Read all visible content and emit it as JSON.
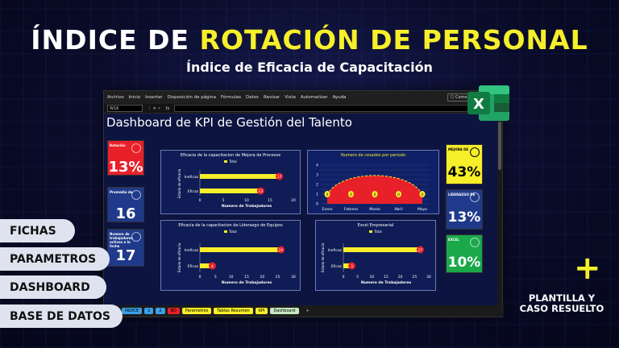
{
  "header": {
    "title_part1": "ÍNDICE DE ",
    "title_part2": "ROTACIÓN DE PERSONAL",
    "subtitle": "Índice de Eficacia de Capacitación"
  },
  "ribbon": {
    "items": [
      "Archivo",
      "Inicio",
      "Insertar",
      "Disposición de página",
      "Fórmulas",
      "Datos",
      "Revisar",
      "Vista",
      "Automatizar",
      "Ayuda"
    ],
    "comments": "Comentarios"
  },
  "formula_bar": {
    "cell": "W16",
    "fx": "fx"
  },
  "dashboard": {
    "title": "Dashboard de KPI de Gestión del Talento",
    "kpis_left": [
      {
        "label": "Rotación",
        "value": "13%",
        "color": "#e8202a"
      },
      {
        "label": "Promedio de",
        "value": "16",
        "color": "#1f3a8a"
      },
      {
        "label": "Numero de trabajadores activos a la fecha",
        "value": "17",
        "color": "#1f3a8a"
      }
    ],
    "kpis_right": [
      {
        "label": "MEJORA DE",
        "value": "43%",
        "color": "#f6ef2a",
        "text": "#000"
      },
      {
        "label": "LIDERAZGO DE",
        "value": "13%",
        "color": "#1f3a8a",
        "text": "#fff"
      },
      {
        "label": "EXCEL",
        "value": "10%",
        "color": "#1aa84a",
        "text": "#fff"
      }
    ]
  },
  "charts_text": {
    "c1_title": "Eficacia de la capacitacion de Mejora de Procesos",
    "c2_title": "Numero de cesados por periodo",
    "c3_title": "Eficacia de la capacitacion de Liderazgo de Equipos",
    "c4_title": "Excel Empresarial",
    "legend": "Total",
    "ylab": "Estado de eficacia",
    "xlab": "Numero de Trabajadores"
  },
  "chart_data": [
    {
      "type": "bar",
      "orientation": "horizontal",
      "title": "Eficacia de la capacitacion de Mejora de Procesos",
      "categories": [
        "Ineficaz",
        "Eficaz"
      ],
      "values": [
        17,
        13
      ],
      "xlim": [
        0,
        20
      ],
      "xticks": [
        0,
        5,
        10,
        15,
        20
      ],
      "xlabel": "Numero de Trabajadores",
      "ylabel": "Estado de eficacia",
      "legend": "Total"
    },
    {
      "type": "area",
      "title": "Numero de cesados por periodo",
      "categories": [
        "Enero",
        "Febrero",
        "Marzo",
        "Abril",
        "Mayo"
      ],
      "values": [
        0,
        0,
        0,
        0,
        0
      ],
      "ylim": [
        0,
        4
      ],
      "yticks": [
        0,
        0.5,
        1,
        1.5,
        2,
        2.5,
        3,
        3.5,
        4
      ]
    },
    {
      "type": "bar",
      "orientation": "horizontal",
      "title": "Eficacia de la capacitacion de Liderazgo de Equipos",
      "categories": [
        "Ineficaz",
        "Eficaz"
      ],
      "values": [
        26,
        4
      ],
      "xlim": [
        0,
        30
      ],
      "xticks": [
        0,
        5,
        10,
        15,
        20,
        25,
        30
      ],
      "xlabel": "Numero de Trabajadores",
      "ylabel": "Estado de eficacia",
      "legend": "Total"
    },
    {
      "type": "bar",
      "orientation": "horizontal",
      "title": "Excel Empresarial",
      "categories": [
        "Ineficaz",
        "Eficaz"
      ],
      "values": [
        27,
        3
      ],
      "xlim": [
        0,
        30
      ],
      "xticks": [
        0,
        5,
        10,
        15,
        20,
        25,
        30
      ],
      "xlabel": "Numero de Trabajadores",
      "ylabel": "Estado de eficacia",
      "legend": "Total"
    }
  ],
  "sheet_tabs": [
    {
      "label": "INDICE",
      "color": "#3aa0e8"
    },
    {
      "label": "1",
      "color": "#3aa0e8"
    },
    {
      "label": "2",
      "color": "#3aa0e8"
    },
    {
      "label": "BD",
      "color": "#e8202a"
    },
    {
      "label": "Parametros",
      "color": "#f6ef2a"
    },
    {
      "label": "Tablas Resumen",
      "color": "#f6ef2a"
    },
    {
      "label": "KPI",
      "color": "#f6ef2a"
    },
    {
      "label": "Dashboard",
      "color": "#c8e8c0"
    }
  ],
  "side_pills": [
    "FICHAS",
    "PARAMETROS",
    "DASHBOARD",
    "BASE DE DATOS"
  ],
  "extra": {
    "plus": "+",
    "note_line1": "PLANTILLA Y",
    "note_line2": "CASO RESUELTO",
    "excel_icon": "excel-logo-icon"
  }
}
